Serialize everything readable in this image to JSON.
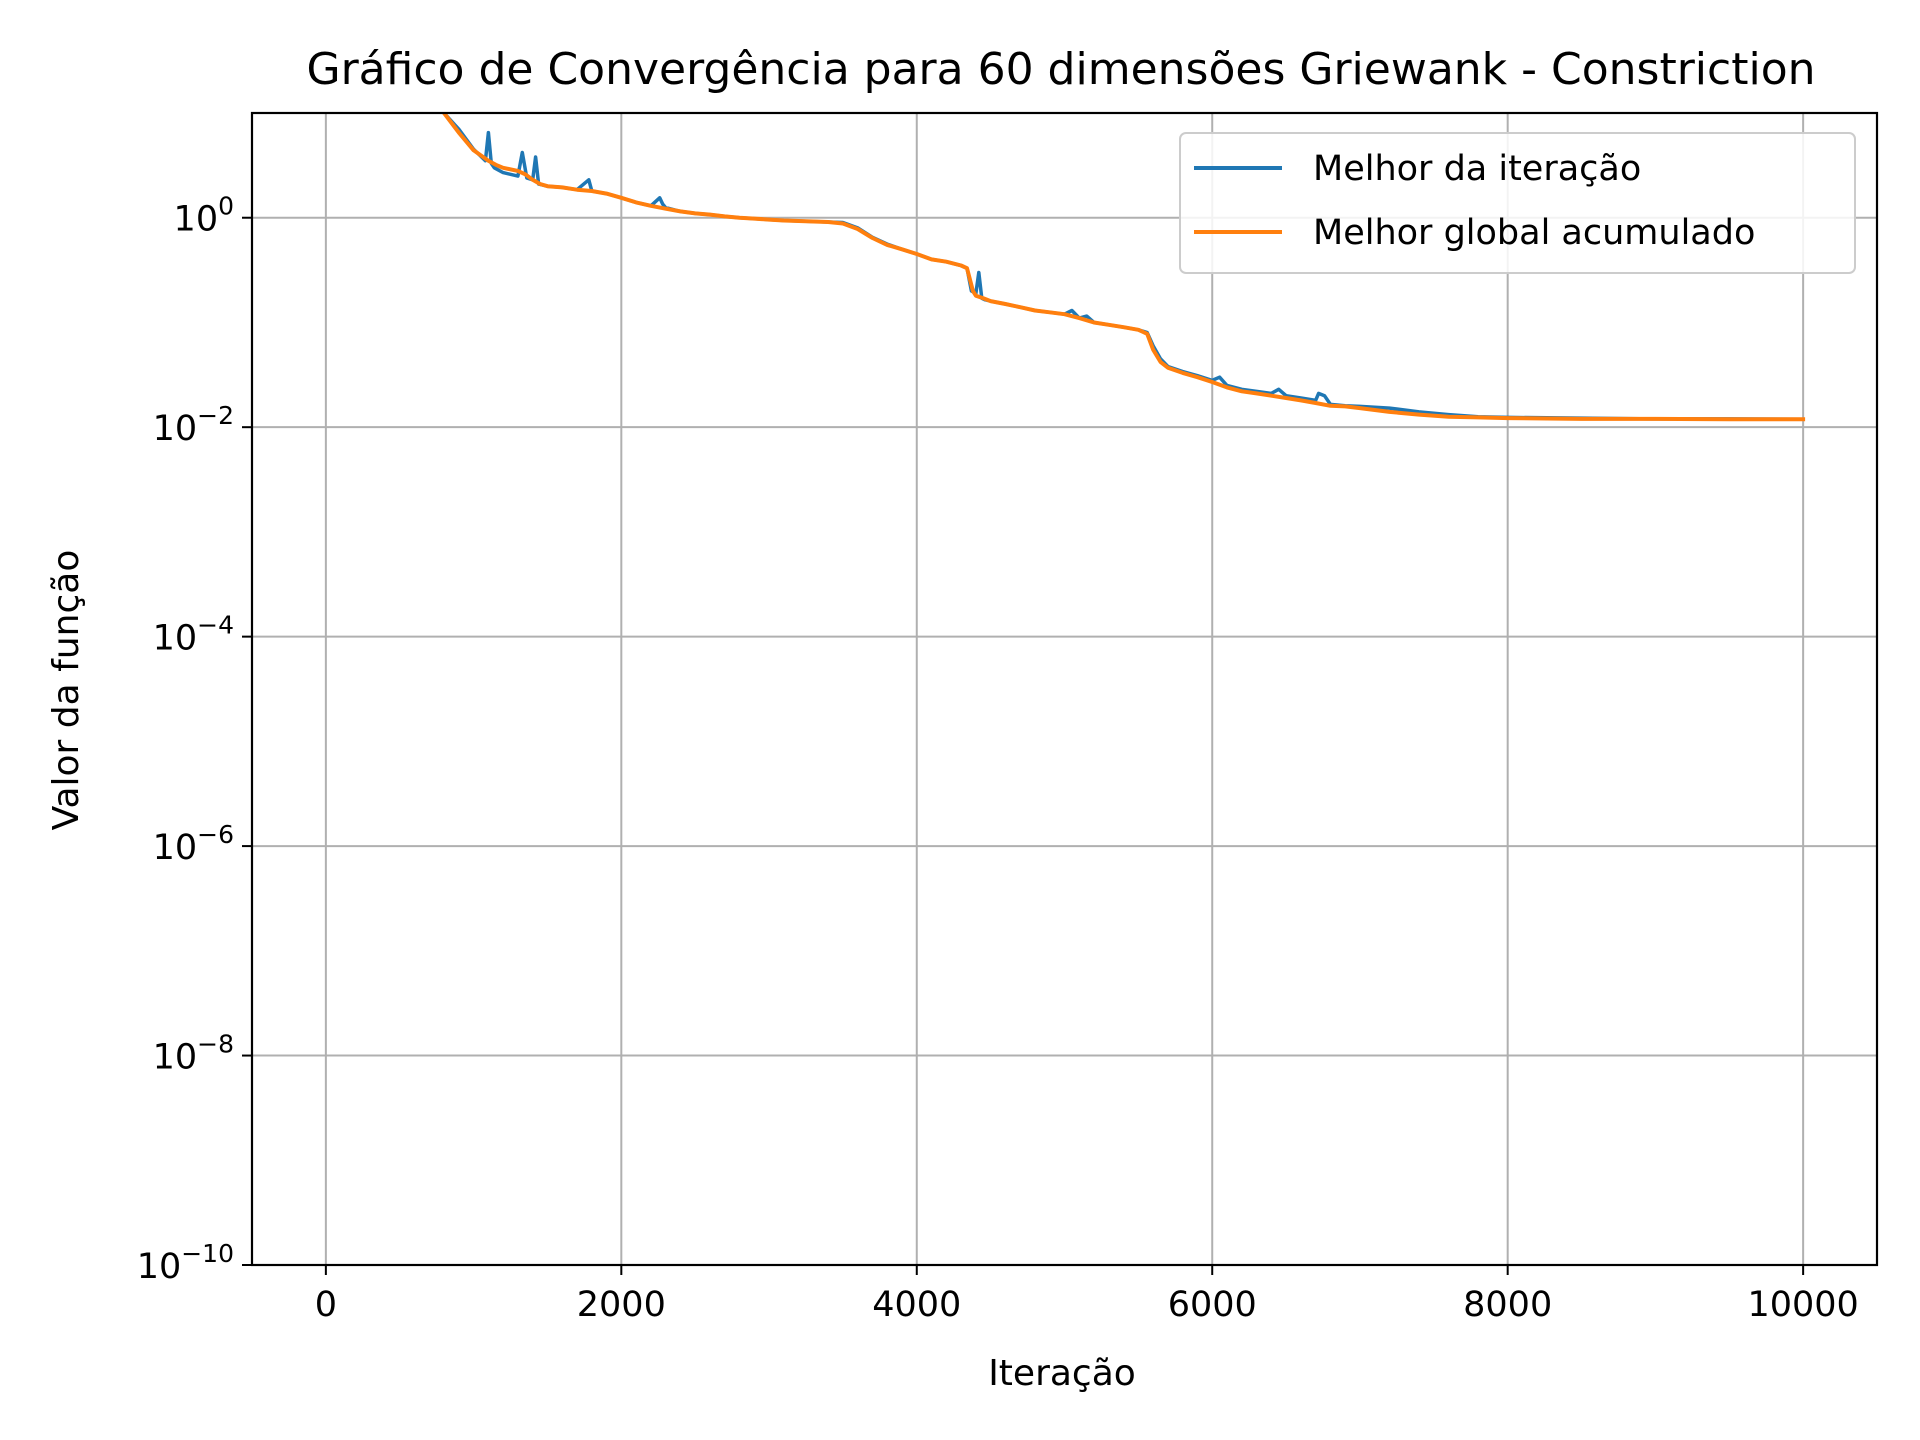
{
  "chart_data": {
    "type": "line",
    "title": "Gráfico de Convergência para 60 dimensões Griewank - Constriction",
    "xlabel": "Iteração",
    "ylabel": "Valor da função",
    "xlim": [
      -500,
      10500
    ],
    "ylim": [
      1e-10,
      10
    ],
    "yscale": "log",
    "grid": true,
    "legend_position": "top-right",
    "x_ticks": [
      0,
      2000,
      4000,
      6000,
      8000,
      10000
    ],
    "x_tick_labels": [
      "0",
      "2000",
      "4000",
      "6000",
      "8000",
      "10000"
    ],
    "y_ticks": [
      0,
      -2,
      -4,
      -6,
      -8,
      -10
    ],
    "y_tick_labels": [
      "10",
      "10",
      "10",
      "10",
      "10",
      "10"
    ],
    "y_tick_exponents": [
      "0",
      "−2",
      "−4",
      "−6",
      "−8",
      "−10"
    ],
    "series": [
      {
        "name": "Melhor da iteração",
        "color": "#1f77b4",
        "x": [
          800,
          900,
          1000,
          1080,
          1100,
          1120,
          1140,
          1200,
          1300,
          1330,
          1360,
          1400,
          1420,
          1440,
          1500,
          1600,
          1700,
          1780,
          1800,
          1850,
          1900,
          2000,
          2100,
          2200,
          2260,
          2280,
          2300,
          2400,
          2500,
          2600,
          2700,
          2800,
          2900,
          3000,
          3100,
          3200,
          3300,
          3400,
          3500,
          3600,
          3700,
          3800,
          3900,
          4000,
          4100,
          4200,
          4300,
          4340,
          4370,
          4400,
          4420,
          4440,
          4460,
          4500,
          4600,
          4700,
          4800,
          4900,
          5000,
          5050,
          5100,
          5150,
          5200,
          5300,
          5400,
          5500,
          5560,
          5600,
          5650,
          5700,
          5800,
          5900,
          6000,
          6050,
          6100,
          6200,
          6300,
          6400,
          6450,
          6500,
          6600,
          6700,
          6720,
          6760,
          6800,
          6900,
          7000,
          7200,
          7400,
          7600,
          7800,
          8000,
          8500,
          9000,
          9500,
          10000
        ],
        "y": [
          10,
          7,
          4.5,
          3.5,
          6.5,
          3.3,
          3,
          2.7,
          2.5,
          4.2,
          2.4,
          2.3,
          3.8,
          2.1,
          2.0,
          1.95,
          1.85,
          2.3,
          1.8,
          1.75,
          1.7,
          1.55,
          1.4,
          1.3,
          1.55,
          1.35,
          1.25,
          1.15,
          1.1,
          1.07,
          1.03,
          1.0,
          0.98,
          0.96,
          0.94,
          0.93,
          0.92,
          0.91,
          0.9,
          0.8,
          0.65,
          0.56,
          0.5,
          0.45,
          0.4,
          0.38,
          0.35,
          0.33,
          0.2,
          0.19,
          0.3,
          0.17,
          0.165,
          0.16,
          0.15,
          0.14,
          0.13,
          0.125,
          0.12,
          0.13,
          0.11,
          0.115,
          0.1,
          0.095,
          0.09,
          0.085,
          0.08,
          0.06,
          0.045,
          0.038,
          0.034,
          0.031,
          0.028,
          0.03,
          0.025,
          0.023,
          0.022,
          0.021,
          0.023,
          0.02,
          0.019,
          0.018,
          0.021,
          0.02,
          0.0165,
          0.016,
          0.0158,
          0.0152,
          0.014,
          0.0132,
          0.0126,
          0.0124,
          0.0122,
          0.012,
          0.012,
          0.0119
        ]
      },
      {
        "name": "Melhor global acumulado",
        "color": "#ff7f0e",
        "x": [
          800,
          900,
          1000,
          1100,
          1150,
          1200,
          1300,
          1350,
          1400,
          1450,
          1500,
          1600,
          1700,
          1800,
          1900,
          2000,
          2100,
          2200,
          2300,
          2400,
          2500,
          2600,
          2700,
          2800,
          2900,
          3000,
          3100,
          3200,
          3300,
          3400,
          3500,
          3600,
          3700,
          3800,
          3900,
          4000,
          4100,
          4200,
          4300,
          4340,
          4380,
          4400,
          4450,
          4500,
          4600,
          4700,
          4800,
          4900,
          5000,
          5100,
          5200,
          5300,
          5400,
          5500,
          5560,
          5600,
          5650,
          5700,
          5800,
          5900,
          6000,
          6100,
          6200,
          6300,
          6400,
          6500,
          6600,
          6700,
          6800,
          6900,
          7000,
          7200,
          7400,
          7600,
          7800,
          8000,
          8500,
          9000,
          9500,
          10000
        ],
        "y": [
          10,
          6.5,
          4.4,
          3.5,
          3.2,
          3.0,
          2.8,
          2.6,
          2.3,
          2.1,
          2.0,
          1.95,
          1.85,
          1.8,
          1.7,
          1.55,
          1.4,
          1.3,
          1.22,
          1.15,
          1.1,
          1.07,
          1.03,
          1.0,
          0.98,
          0.96,
          0.94,
          0.93,
          0.92,
          0.91,
          0.88,
          0.78,
          0.64,
          0.55,
          0.5,
          0.45,
          0.4,
          0.38,
          0.35,
          0.33,
          0.2,
          0.18,
          0.17,
          0.16,
          0.15,
          0.14,
          0.13,
          0.125,
          0.12,
          0.11,
          0.1,
          0.095,
          0.09,
          0.085,
          0.078,
          0.055,
          0.042,
          0.037,
          0.033,
          0.03,
          0.027,
          0.024,
          0.022,
          0.021,
          0.02,
          0.019,
          0.018,
          0.017,
          0.016,
          0.0158,
          0.0152,
          0.014,
          0.0132,
          0.0126,
          0.0124,
          0.0122,
          0.012,
          0.012,
          0.0119,
          0.0119
        ]
      }
    ]
  }
}
